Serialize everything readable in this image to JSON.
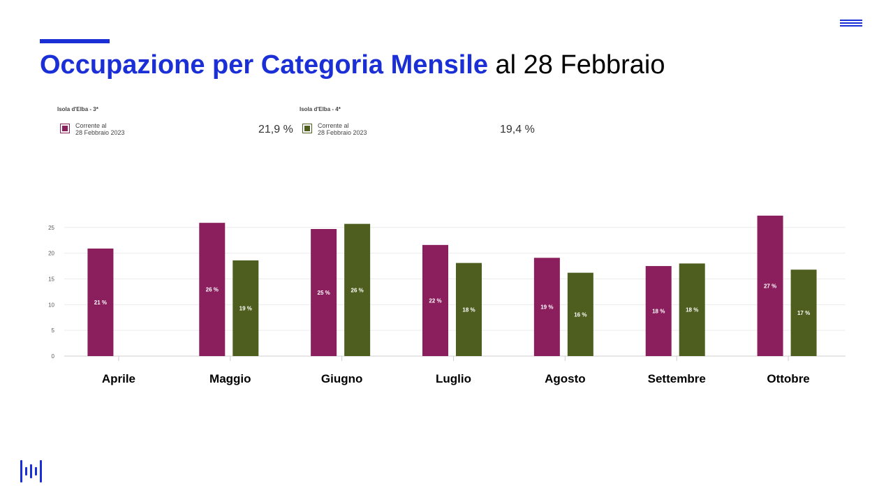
{
  "header": {
    "title_bold": "Occupazione per Categoria Mensile",
    "title_rest": " al 28 Febbraio",
    "accent_color": "#1b2fd6",
    "menu_icon": "hamburger-menu-icon",
    "logo_icon": "waveform-logo-icon"
  },
  "legend": [
    {
      "group": "Isola d'Elba - 3*",
      "line1": "Corrente al",
      "line2": "28 Febbraio 2023",
      "value": "21,9 %",
      "color": "#8b1f5e"
    },
    {
      "group": "Isola d'Elba - 4*",
      "line1": "Corrente al",
      "line2": "28 Febbraio 2023",
      "value": "19,4 %",
      "color": "#4e5e1e"
    }
  ],
  "chart_data": {
    "type": "bar",
    "categories": [
      "Aprile",
      "Maggio",
      "Giugno",
      "Luglio",
      "Agosto",
      "Settembre",
      "Ottobre"
    ],
    "series": [
      {
        "name": "Isola d'Elba - 3*",
        "color": "#8b1f5e",
        "values": [
          20.9,
          25.9,
          24.7,
          21.6,
          19.1,
          17.5,
          27.3
        ],
        "labels": [
          "21 %",
          "26 %",
          "25 %",
          "22 %",
          "19 %",
          "18 %",
          "27 %"
        ]
      },
      {
        "name": "Isola d'Elba - 4*",
        "color": "#4e5e1e",
        "values": [
          null,
          18.6,
          25.7,
          18.1,
          16.2,
          18.0,
          16.8
        ],
        "labels": [
          null,
          "19 %",
          "26 %",
          "18 %",
          "16 %",
          "18 %",
          "17 %"
        ]
      }
    ],
    "yticks": [
      0,
      5,
      10,
      15,
      20,
      25
    ],
    "ylim": [
      0,
      28.5
    ],
    "grid": true,
    "xlabel": "",
    "ylabel": ""
  }
}
